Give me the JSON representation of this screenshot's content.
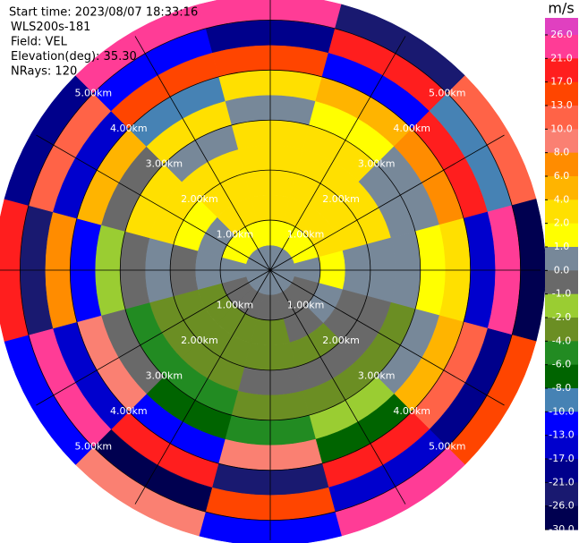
{
  "chart_data": {
    "type": "ppi",
    "info": [
      "Start time: 2023/08/07 18:33:16",
      "WLS200s-181",
      "Field: VEL",
      "Elevation(deg): 35.30",
      "NRays: 120"
    ],
    "azimuths": [
      0,
      30,
      60,
      90,
      120,
      150,
      180,
      210,
      240,
      270,
      300,
      330
    ],
    "gates": [
      0,
      0.5,
      1,
      1.5,
      2,
      2.5,
      3,
      3.5,
      4,
      4.5,
      5,
      5.5
    ],
    "rlim": [
      0,
      5.4
    ],
    "field": [
      [
        0,
        1,
        3,
        3,
        3,
        2,
        0,
        3,
        15,
        -18,
        24
      ],
      [
        0,
        1,
        3,
        3,
        3,
        3,
        1,
        5,
        -12,
        20,
        -25
      ],
      [
        0,
        1,
        2,
        3,
        3,
        0,
        0,
        7,
        18,
        -9,
        12
      ],
      [
        0,
        0,
        1,
        0,
        0,
        0,
        1,
        3,
        -15,
        22,
        -28
      ],
      [
        0,
        -1,
        0,
        -1,
        -1,
        -3,
        0,
        5,
        11,
        -19,
        16
      ],
      [
        0,
        -1,
        -1,
        -3,
        -1,
        -3,
        -2,
        -7,
        19,
        -14,
        23
      ],
      [
        0,
        -1,
        -3,
        -3,
        -1,
        -3,
        -5,
        9,
        -23,
        14,
        -11
      ],
      [
        0,
        -1,
        -3,
        -3,
        -3,
        -5,
        -7,
        -12,
        18,
        -27,
        9
      ],
      [
        0,
        -1,
        -3,
        -3,
        -3,
        -5,
        -1,
        9,
        -16,
        21,
        -12
      ],
      [
        0,
        0,
        0,
        -1,
        0,
        -1,
        -2,
        -11,
        7,
        -24,
        18
      ],
      [
        0,
        1,
        0,
        1,
        3,
        3,
        -1,
        5,
        -15,
        12,
        -20
      ],
      [
        0,
        1,
        3,
        3,
        3,
        0,
        3,
        -9,
        16,
        -13,
        25
      ]
    ],
    "range_rings": [
      {
        "value": 1,
        "label": "1.00km"
      },
      {
        "value": 2,
        "label": "2.00km"
      },
      {
        "value": 3,
        "label": "3.00km"
      },
      {
        "value": 4,
        "label": "4.00km"
      },
      {
        "value": 5,
        "label": "5.00km"
      }
    ],
    "colorbar": {
      "label": "m/s",
      "ticks": [
        {
          "value": 26,
          "label": "26.0"
        },
        {
          "value": 21,
          "label": "21.0"
        },
        {
          "value": 17,
          "label": "17.0"
        },
        {
          "value": 13,
          "label": "13.0"
        },
        {
          "value": 10,
          "label": "10.0"
        },
        {
          "value": 8,
          "label": "8.0"
        },
        {
          "value": 6,
          "label": "6.0"
        },
        {
          "value": 4,
          "label": "4.0"
        },
        {
          "value": 2,
          "label": "2.0"
        },
        {
          "value": 1,
          "label": "1.0"
        },
        {
          "value": 0,
          "label": "0.0"
        },
        {
          "value": -1,
          "label": "-1.0"
        },
        {
          "value": -2,
          "label": "-2.0"
        },
        {
          "value": -4,
          "label": "-4.0"
        },
        {
          "value": -6,
          "label": "-6.0"
        },
        {
          "value": -8,
          "label": "-8.0"
        },
        {
          "value": -10,
          "label": "-10.0"
        },
        {
          "value": -13,
          "label": "-13.0"
        },
        {
          "value": -17,
          "label": "-17.0"
        },
        {
          "value": -21,
          "label": "-21.0"
        },
        {
          "value": -26,
          "label": "-26.0"
        },
        {
          "value": -30,
          "label": "-30.0"
        }
      ],
      "colors": [
        "#e040c0",
        "#ff3c96",
        "#ff1e1e",
        "#ff4500",
        "#ff6347",
        "#fa8072",
        "#ff8c00",
        "#ffb400",
        "#ffe000",
        "#ffff00",
        "#778899",
        "#696969",
        "#9acd32",
        "#6b8e23",
        "#228b22",
        "#006400",
        "#4682b4",
        "#0000ff",
        "#0000cd",
        "#00008b",
        "#191970",
        "#000050"
      ]
    }
  }
}
